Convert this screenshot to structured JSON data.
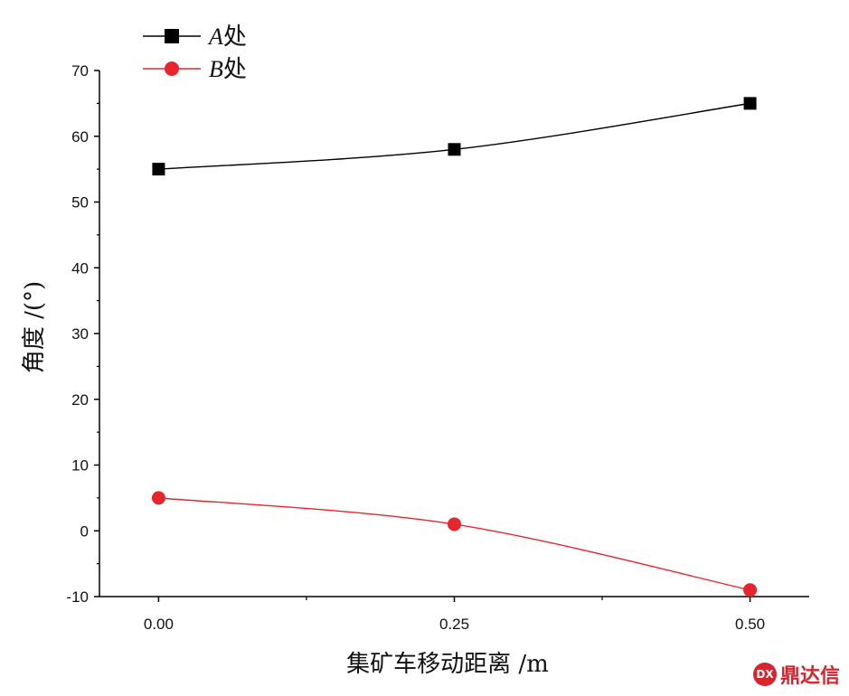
{
  "chart_data": {
    "type": "line",
    "xlabel": "集矿车移动距离 /m",
    "ylabel": "角度 /(°)",
    "x": [
      0.0,
      0.25,
      0.5
    ],
    "x_tick_labels": [
      "0.00",
      "0.25",
      "0.50"
    ],
    "xlim": [
      -0.05,
      0.55
    ],
    "ylim": [
      -10,
      70
    ],
    "y_ticks": [
      -10,
      0,
      10,
      20,
      30,
      40,
      50,
      60,
      70
    ],
    "grid": false,
    "legend_position": "top-left",
    "series": [
      {
        "name": "A处",
        "name_italic": "A",
        "name_rest": "处",
        "marker": "square",
        "color": "#000000",
        "values": [
          55,
          58,
          65
        ]
      },
      {
        "name": "B处",
        "name_italic": "B",
        "name_rest": "处",
        "marker": "circle",
        "color": "#e8242c",
        "values": [
          5,
          1,
          -9
        ]
      }
    ]
  },
  "watermark": {
    "logo_text": "DX",
    "text": "鼎达信"
  }
}
